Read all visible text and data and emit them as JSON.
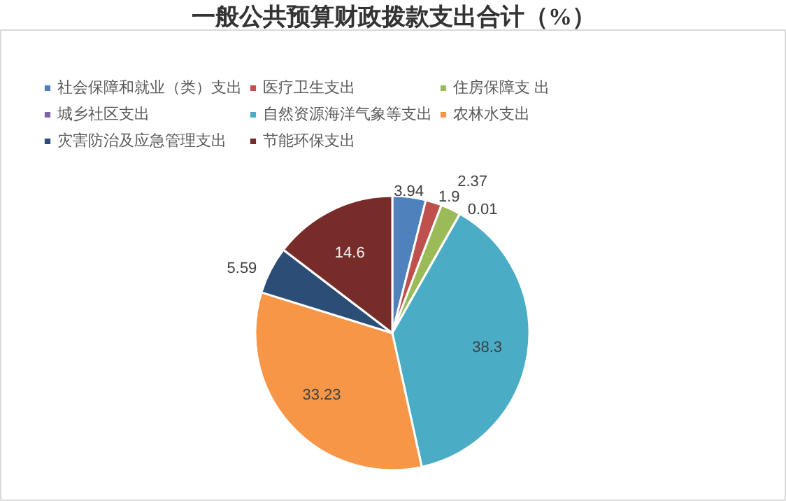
{
  "chart_data": {
    "type": "pie",
    "title": "一般公共预算财政拨款支出合计（%）",
    "categories": [
      "社会保障和就业（类）支出",
      "医疗卫生支出",
      "住房保障支 出",
      "城乡社区支出",
      "自然资源海洋气象等支出",
      "农林水支出",
      "灾害防治及应急管理支出",
      "节能环保支出"
    ],
    "values": [
      3.94,
      1.9,
      2.37,
      0.01,
      38.3,
      33.23,
      5.59,
      14.6
    ],
    "colors": [
      "#4f81bd",
      "#c0504d",
      "#9bbb59",
      "#8064a2",
      "#4bacc6",
      "#f79646",
      "#2c4d75",
      "#772c2a"
    ],
    "data_labels": true,
    "legend": "top"
  }
}
